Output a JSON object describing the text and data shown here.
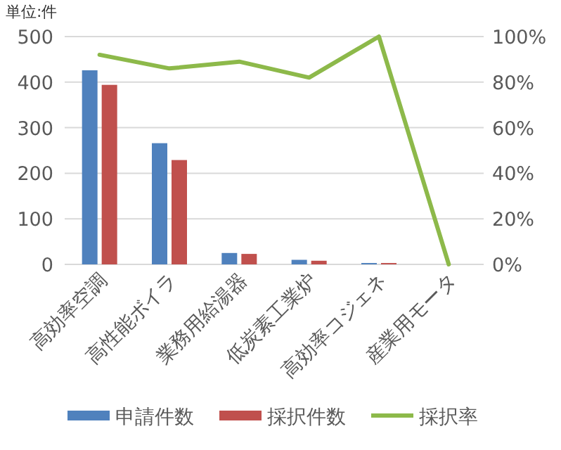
{
  "chart_data": {
    "type": "bar",
    "ylabel": "単位:件",
    "categories": [
      "高効率空調",
      "高性能ボイラ",
      "業務用給湯器",
      "低炭素工業炉",
      "高効率コジェネ",
      "産業用モータ"
    ],
    "series": [
      {
        "name": "申請件数",
        "color": "#4f81bd",
        "values": [
          426,
          266,
          25,
          10,
          3,
          0
        ]
      },
      {
        "name": "採択件数",
        "color": "#c0504d",
        "values": [
          394,
          229,
          23,
          8,
          3,
          0
        ]
      },
      {
        "name": "採択率",
        "type": "line",
        "axis": "y2",
        "color": "#8db94a",
        "values": [
          92,
          86,
          89,
          82,
          100,
          0
        ]
      }
    ],
    "ylim": [
      0,
      500
    ],
    "yticks": [
      0,
      100,
      200,
      300,
      400,
      500
    ],
    "y2lim": [
      0,
      100
    ],
    "y2ticks": [
      {
        "value": 0,
        "label": "0%"
      },
      {
        "value": 20,
        "label": "20%"
      },
      {
        "value": 40,
        "label": "40%"
      },
      {
        "value": 60,
        "label": "60%"
      },
      {
        "value": 80,
        "label": "80%"
      },
      {
        "value": 100,
        "label": "100%"
      }
    ],
    "grid": "y",
    "legend": "bottom"
  }
}
